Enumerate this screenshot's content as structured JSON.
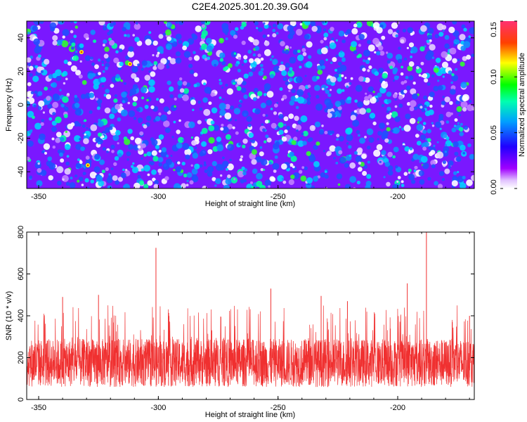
{
  "title": "C2E4.2025.301.20.39.G04",
  "chart_data": [
    {
      "type": "heatmap",
      "xlabel": "Height of straight line (km)",
      "ylabel": "Frequency (Hz)",
      "xlim": [
        -355,
        -168
      ],
      "ylim": [
        -50,
        50
      ],
      "xticks": [
        -350,
        -300,
        -250,
        -200
      ],
      "xtick_labels": [
        "-350",
        "-300",
        "-250",
        "-200"
      ],
      "yticks": [
        -40,
        -20,
        0,
        20,
        40
      ],
      "ytick_labels": [
        "-40",
        "-20",
        "0",
        "20",
        "40"
      ],
      "colorbar": {
        "label": "Normalized spectral amplitude",
        "range": [
          0,
          0.15
        ],
        "ticks": [
          0,
          0.05,
          0.1,
          0.15
        ],
        "tick_labels": [
          "0.00",
          "0.05",
          "0.10",
          "0.15"
        ],
        "colors": [
          "#ffffff",
          "#a000ff",
          "#0000ff",
          "#00c8ff",
          "#00ff40",
          "#ffff00",
          "#ff0000",
          "#ff3070"
        ]
      },
      "colors": {
        "low": "#a000ff",
        "mid": "#0050ff",
        "high": "#00ff80"
      }
    },
    {
      "type": "line",
      "xlabel": "Height of straight line (km)",
      "ylabel": "SNR (10 * v/v)",
      "xlim": [
        -355,
        -168
      ],
      "ylim": [
        0,
        800
      ],
      "xticks": [
        -350,
        -300,
        -250,
        -200
      ],
      "xtick_labels": [
        "-350",
        "-300",
        "-250",
        "-200"
      ],
      "yticks": [
        0,
        200,
        400,
        600,
        800
      ],
      "ytick_labels": [
        "0",
        "200",
        "400",
        "600",
        "800"
      ],
      "line_color": "#f03030",
      "baseline_range": [
        60,
        290
      ],
      "spikes": [
        {
          "x": -301,
          "y": 725
        },
        {
          "x": -188,
          "y": 800
        },
        {
          "x": -196,
          "y": 555
        },
        {
          "x": -253,
          "y": 530
        },
        {
          "x": -325,
          "y": 500
        },
        {
          "x": -340,
          "y": 490
        },
        {
          "x": -221,
          "y": 470
        },
        {
          "x": -232,
          "y": 495
        },
        {
          "x": -170,
          "y": 400
        }
      ]
    }
  ]
}
